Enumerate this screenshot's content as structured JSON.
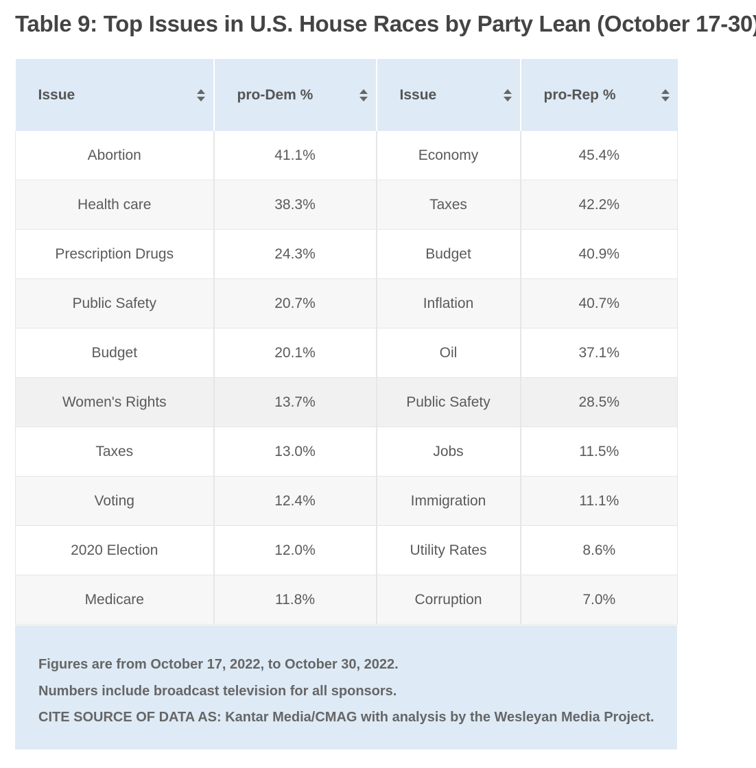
{
  "title": "Table 9: Top Issues in U.S. House Races by Party Lean (October 17-30)",
  "headers": [
    {
      "label": "Issue",
      "icon": "sort-icon"
    },
    {
      "label": "pro-Dem %",
      "icon": "sort-icon"
    },
    {
      "label": "Issue",
      "icon": "sort-icon"
    },
    {
      "label": "pro-Rep %",
      "icon": "sort-icon"
    }
  ],
  "rows": [
    [
      "Abortion",
      "41.1%",
      "Economy",
      "45.4%"
    ],
    [
      "Health care",
      "38.3%",
      "Taxes",
      "42.2%"
    ],
    [
      "Prescription Drugs",
      "24.3%",
      "Budget",
      "40.9%"
    ],
    [
      "Public Safety",
      "20.7%",
      "Inflation",
      "40.7%"
    ],
    [
      "Budget",
      "20.1%",
      "Oil",
      "37.1%"
    ],
    [
      "Women's Rights",
      "13.7%",
      "Public Safety",
      "28.5%"
    ],
    [
      "Taxes",
      "13.0%",
      "Jobs",
      "11.5%"
    ],
    [
      "Voting",
      "12.4%",
      "Immigration",
      "11.1%"
    ],
    [
      "2020 Election",
      "12.0%",
      "Utility Rates",
      "8.6%"
    ],
    [
      "Medicare",
      "11.8%",
      "Corruption",
      "7.0%"
    ]
  ],
  "notes": [
    "Figures are from October 17, 2022, to October 30, 2022.",
    "Numbers include broadcast television for all sponsors.",
    "CITE SOURCE OF DATA AS: Kantar Media/CMAG with analysis by the Wesleyan Media Project."
  ],
  "colors": {
    "header_bg": "#deeaf5",
    "footer_bg": "#deeaf5",
    "stripe_bg": "#f7f7f7",
    "text": "#555555"
  }
}
